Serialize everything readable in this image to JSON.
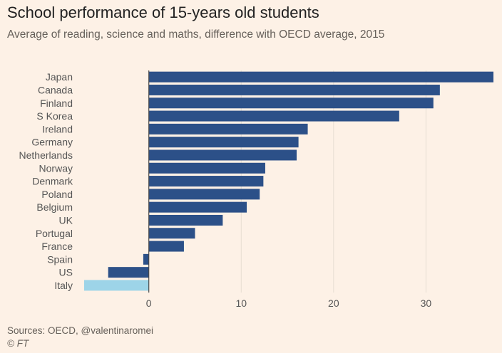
{
  "chart_data": {
    "type": "bar",
    "orientation": "horizontal",
    "title": "School performance of 15-years old students",
    "subtitle": "Average of reading, science and maths, difference with OECD average, 2015",
    "categories": [
      "Japan",
      "Canada",
      "Finland",
      "S Korea",
      "Ireland",
      "Germany",
      "Netherlands",
      "Norway",
      "Denmark",
      "Poland",
      "Belgium",
      "UK",
      "Portugal",
      "France",
      "Spain",
      "US",
      "Italy"
    ],
    "values": [
      37.3,
      31.5,
      30.8,
      27.1,
      17.2,
      16.2,
      16.0,
      12.6,
      12.4,
      12.0,
      10.6,
      8.0,
      5.0,
      3.8,
      -0.6,
      -4.4,
      -7.0
    ],
    "highlight": "Italy",
    "colors": {
      "bar": "#2c5088",
      "highlight": "#9dd4e8",
      "grid": "#e6ddd2",
      "zero_line": "#4a4a4a",
      "background": "#fdf1e6",
      "text": "#555555"
    },
    "xticks": [
      0,
      10,
      20,
      30
    ],
    "xlim": [
      -7,
      37.3
    ],
    "grid": true,
    "xlabel": "",
    "ylabel": ""
  },
  "footer": {
    "source": "Sources: OECD, @valentinaromei",
    "copyright": "© FT"
  }
}
